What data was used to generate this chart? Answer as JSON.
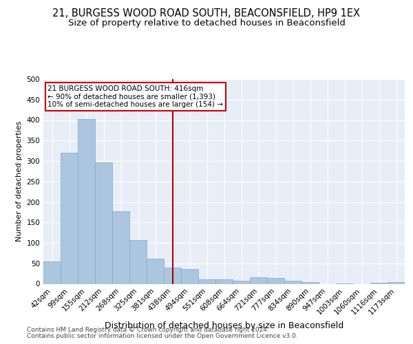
{
  "title": "21, BURGESS WOOD ROAD SOUTH, BEACONSFIELD, HP9 1EX",
  "subtitle": "Size of property relative to detached houses in Beaconsfield",
  "xlabel": "Distribution of detached houses by size in Beaconsfield",
  "ylabel": "Number of detached properties",
  "footer_line1": "Contains HM Land Registry data © Crown copyright and database right 2024.",
  "footer_line2": "Contains public sector information licensed under the Open Government Licence v3.0.",
  "bar_labels": [
    "42sqm",
    "99sqm",
    "155sqm",
    "212sqm",
    "268sqm",
    "325sqm",
    "381sqm",
    "438sqm",
    "494sqm",
    "551sqm",
    "608sqm",
    "664sqm",
    "721sqm",
    "777sqm",
    "834sqm",
    "890sqm",
    "947sqm",
    "1003sqm",
    "1060sqm",
    "1116sqm",
    "1173sqm"
  ],
  "bar_values": [
    55,
    320,
    402,
    296,
    178,
    106,
    62,
    40,
    36,
    11,
    11,
    7,
    16,
    14,
    8,
    4,
    0,
    1,
    0,
    3,
    5
  ],
  "bar_color": "#adc6e0",
  "bar_edge_color": "#7aaac8",
  "vline_x": 7,
  "vline_color": "#aa0000",
  "annotation_text": "21 BURGESS WOOD ROAD SOUTH: 416sqm\n← 90% of detached houses are smaller (1,393)\n10% of semi-detached houses are larger (154) →",
  "annotation_box_color": "#ffffff",
  "annotation_box_edge": "#cc0000",
  "ylim": [
    0,
    500
  ],
  "yticks": [
    0,
    50,
    100,
    150,
    200,
    250,
    300,
    350,
    400,
    450,
    500
  ],
  "plot_bg_color": "#e8eef8",
  "grid_color": "#ffffff",
  "title_fontsize": 10.5,
  "subtitle_fontsize": 9.5,
  "ylabel_fontsize": 8,
  "xlabel_fontsize": 9,
  "tick_fontsize": 7.5,
  "annotation_fontsize": 7.5,
  "footer_fontsize": 6.5
}
